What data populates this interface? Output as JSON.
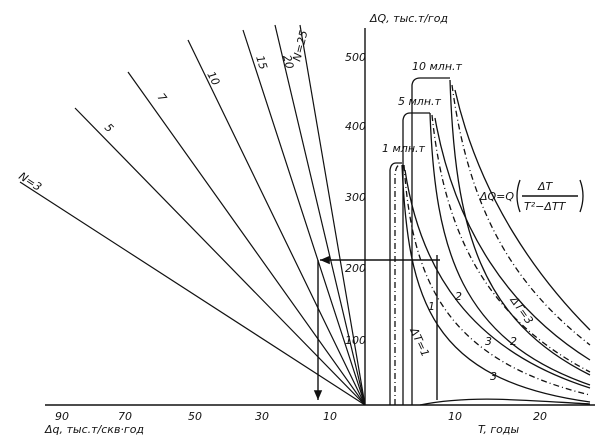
{
  "axes": {
    "vertical": {
      "label": "ΔQ, тыс.т/год",
      "ticks": [
        "100",
        "200",
        "300",
        "400",
        "500"
      ]
    },
    "left": {
      "label": "Δq, тыс.т/скв·год",
      "ticks": [
        "90",
        "70",
        "50",
        "30",
        "10"
      ]
    },
    "right": {
      "label": "T, годы",
      "ticks": [
        "10",
        "20"
      ]
    }
  },
  "rays": [
    "N=3",
    "5",
    "7",
    "10",
    "15",
    "20",
    "N=25"
  ],
  "peaks": [
    "1 млн.т",
    "5 млн.т",
    "10 млн.т"
  ],
  "annotations": [
    "ΔT=1",
    "ΔT=3"
  ],
  "curve_labels": [
    "1",
    "2",
    "3",
    "2",
    "3"
  ],
  "formula": {
    "lhs": "ΔQ=Q",
    "numerator": "ΔT",
    "denominator": "T²−ΔTT"
  }
}
